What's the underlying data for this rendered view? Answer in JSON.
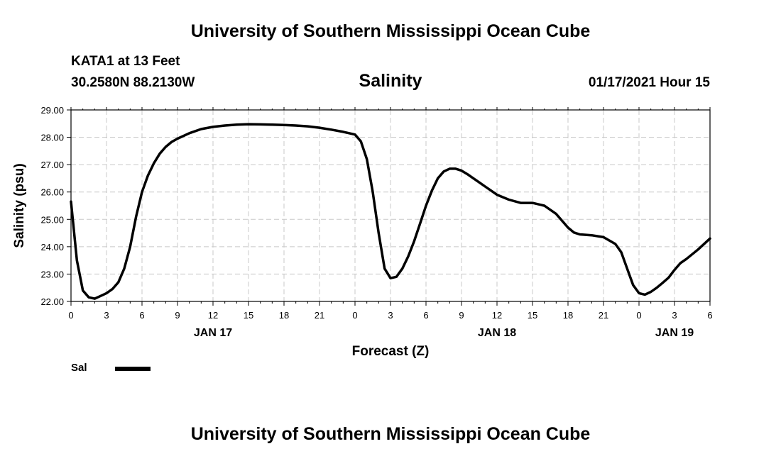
{
  "header": {
    "title": "University of Southern Mississippi Ocean Cube",
    "station": "KATA1 at 13 Feet",
    "coords": "30.2580N 88.2130W",
    "timestamp": "01/17/2021 Hour 15"
  },
  "footer": {
    "title": "University of Southern Mississippi Ocean Cube"
  },
  "chart_data": {
    "type": "line",
    "title": "Salinity",
    "xlabel": "Forecast (Z)",
    "ylabel": "Salinity (psu)",
    "ylim": [
      22,
      29
    ],
    "xlim": [
      0,
      54
    ],
    "yticks": [
      "22.00",
      "23.00",
      "24.00",
      "25.00",
      "26.00",
      "27.00",
      "28.00",
      "29.00"
    ],
    "xtick_labels": [
      "0",
      "3",
      "6",
      "9",
      "12",
      "15",
      "18",
      "21",
      "0",
      "3",
      "6",
      "9",
      "12",
      "15",
      "18",
      "21",
      "0",
      "3",
      "6"
    ],
    "date_labels": [
      {
        "hour": 12,
        "label": "JAN 17"
      },
      {
        "hour": 36,
        "label": "JAN 18"
      },
      {
        "hour": 51,
        "label": "JAN 19"
      }
    ],
    "grid": true,
    "line_color": "#000000",
    "grid_color": "#c8c8c8",
    "series": [
      {
        "name": "Sal",
        "x": [
          0,
          0.5,
          1,
          1.5,
          2,
          2.5,
          3,
          3.5,
          4,
          4.5,
          5,
          5.5,
          6,
          6.5,
          7,
          7.5,
          8,
          8.5,
          9,
          10,
          11,
          12,
          13,
          14,
          15,
          16,
          17,
          18,
          19,
          20,
          21,
          22,
          23,
          24,
          24.5,
          25,
          25.5,
          26,
          26.5,
          27,
          27.5,
          28,
          28.5,
          29,
          29.5,
          30,
          30.5,
          31,
          31.5,
          32,
          32.5,
          33,
          33.5,
          34,
          34.5,
          35,
          35.5,
          36,
          37,
          38,
          39,
          40,
          41,
          42,
          42.5,
          43,
          44,
          45,
          46,
          46.5,
          47,
          47.5,
          48,
          48.5,
          49,
          49.5,
          50,
          50.5,
          51,
          51.5,
          52,
          53,
          54
        ],
        "values": [
          25.65,
          23.5,
          22.4,
          22.15,
          22.1,
          22.2,
          22.3,
          22.45,
          22.7,
          23.2,
          24.0,
          25.1,
          26.0,
          26.6,
          27.05,
          27.4,
          27.65,
          27.83,
          27.95,
          28.15,
          28.3,
          28.38,
          28.43,
          28.46,
          28.48,
          28.47,
          28.46,
          28.45,
          28.43,
          28.4,
          28.35,
          28.28,
          28.2,
          28.1,
          27.85,
          27.2,
          26.0,
          24.5,
          23.2,
          22.85,
          22.9,
          23.2,
          23.65,
          24.2,
          24.85,
          25.5,
          26.05,
          26.5,
          26.75,
          26.85,
          26.85,
          26.78,
          26.65,
          26.5,
          26.35,
          26.2,
          26.05,
          25.9,
          25.72,
          25.6,
          25.6,
          25.5,
          25.2,
          24.7,
          24.52,
          24.45,
          24.42,
          24.35,
          24.1,
          23.8,
          23.2,
          22.6,
          22.3,
          22.25,
          22.35,
          22.5,
          22.68,
          22.87,
          23.15,
          23.4,
          23.55,
          23.9,
          24.3
        ]
      }
    ],
    "legend": {
      "label": "Sal",
      "position": "bottom-left"
    }
  }
}
